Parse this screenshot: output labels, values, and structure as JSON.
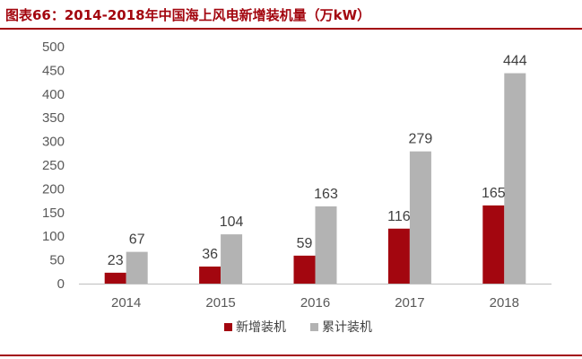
{
  "header": {
    "title": "图表66：2014-2018年中国海上风电新增装机量（万kW）"
  },
  "chart_data": {
    "type": "bar",
    "title": "图表66：2014-2018年中国海上风电新增装机量（万kW）",
    "categories": [
      "2014",
      "2015",
      "2016",
      "2017",
      "2018"
    ],
    "series": [
      {
        "name": "新增装机",
        "values": [
          23,
          36,
          59,
          116,
          165
        ],
        "color": "#a3060f"
      },
      {
        "name": "累计装机",
        "values": [
          67,
          104,
          163,
          279,
          444
        ],
        "color": "#b3b3b3"
      }
    ],
    "xlabel": "",
    "ylabel": "",
    "ylim": [
      0,
      500
    ],
    "yticks": [
      0,
      50,
      100,
      150,
      200,
      250,
      300,
      350,
      400,
      450,
      500
    ],
    "grid": false,
    "legend": "bottom-center"
  }
}
